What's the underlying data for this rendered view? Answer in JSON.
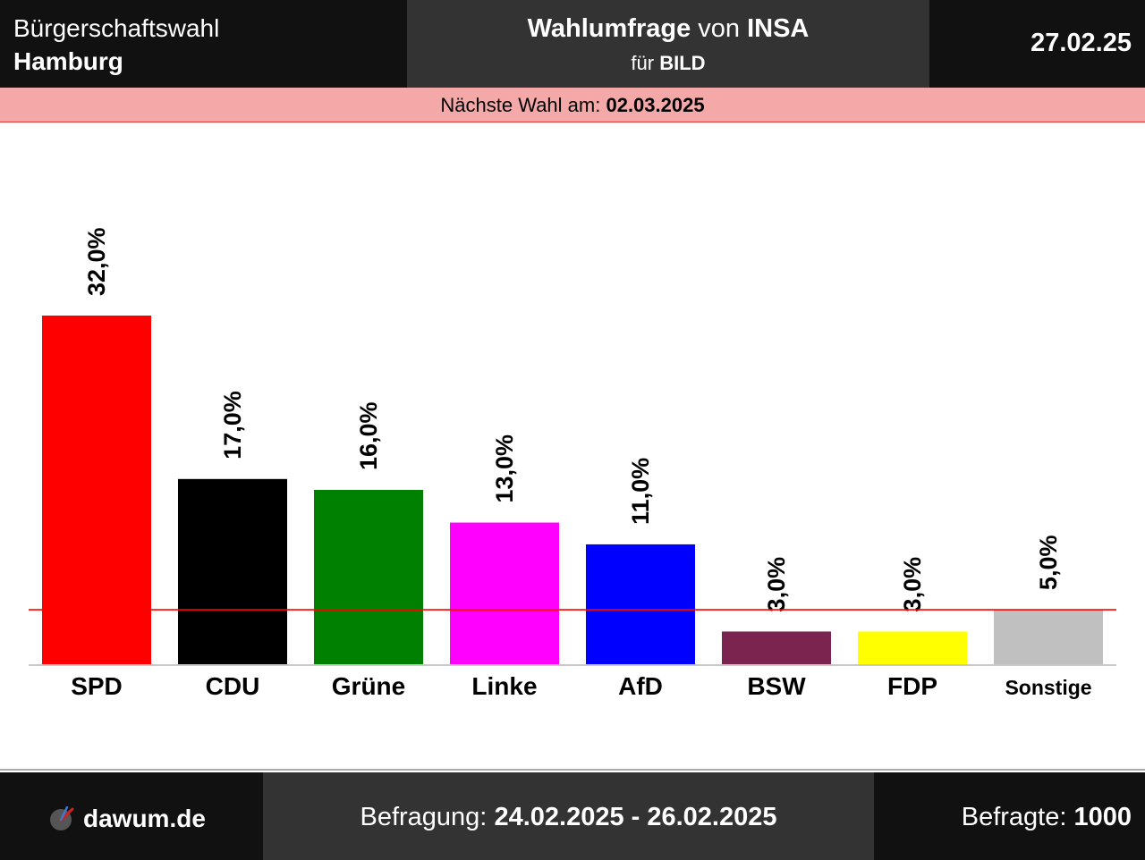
{
  "header": {
    "election_line1": "Bürgerschaftswahl",
    "election_line2": "Hamburg",
    "survey_bold": "Wahlumfrage",
    "survey_von": "von",
    "institute": "INSA",
    "client_prefix": "für",
    "client": "BILD",
    "date": "27.02.25"
  },
  "next_election": {
    "label": "Nächste Wahl am:",
    "date": "02.03.2025"
  },
  "footer": {
    "brand": "dawum.de",
    "period_label": "Befragung:",
    "period": "24.02.2025 - 26.02.2025",
    "respondents_label": "Befragte:",
    "respondents": "1000"
  },
  "chart_data": {
    "type": "bar",
    "categories": [
      "SPD",
      "CDU",
      "Grüne",
      "Linke",
      "AfD",
      "BSW",
      "FDP",
      "Sonstige"
    ],
    "values": [
      32.0,
      17.0,
      16.0,
      13.0,
      11.0,
      3.0,
      3.0,
      5.0
    ],
    "value_labels": [
      "32,0%",
      "17,0%",
      "16,0%",
      "13,0%",
      "11,0%",
      "3,0%",
      "3,0%",
      "5,0%"
    ],
    "colors": [
      "#ff0000",
      "#000000",
      "#008000",
      "#ff00ff",
      "#0000ff",
      "#7b2450",
      "#ffff00",
      "#c0c0c0"
    ],
    "threshold": 5.0,
    "threshold_color": "#ff0000",
    "ylim": [
      0,
      32
    ]
  }
}
